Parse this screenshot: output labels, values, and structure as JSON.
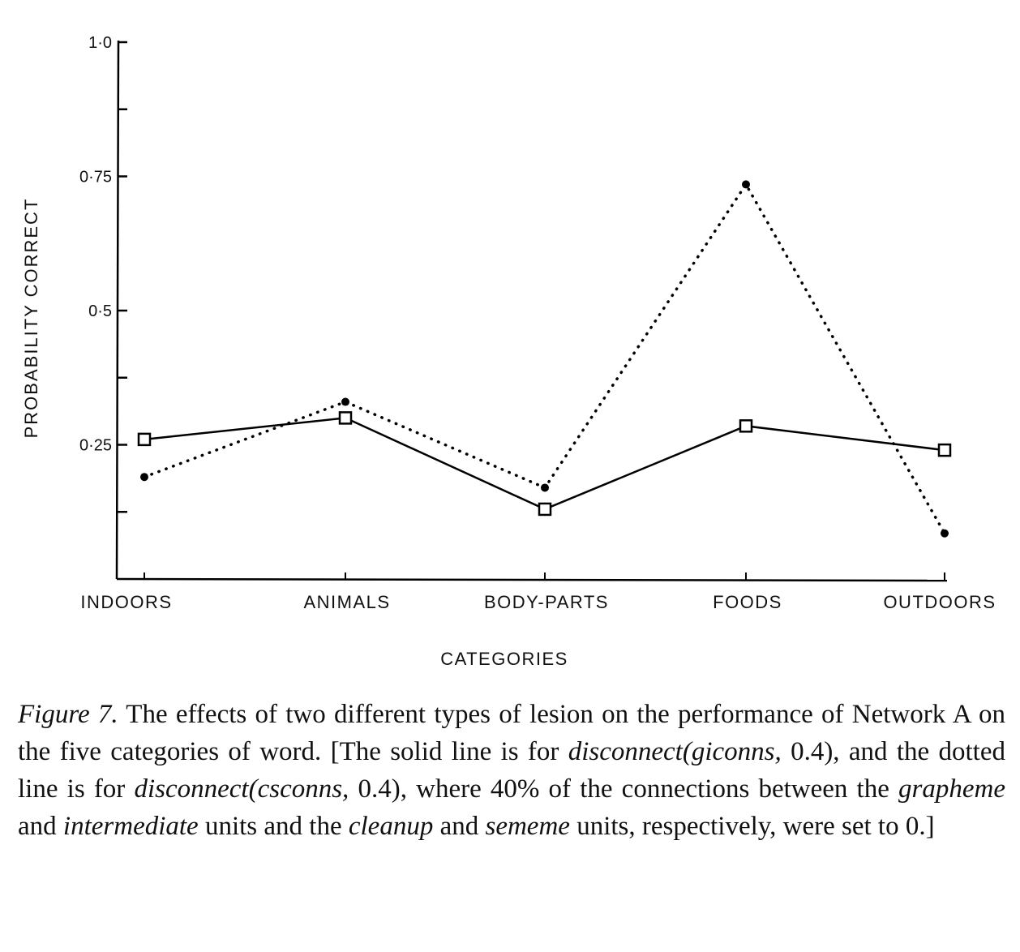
{
  "chart_data": {
    "type": "line",
    "xlabel": "CATEGORIES",
    "ylabel": "PROBABILITY CORRECT",
    "categories": [
      "INDOORS",
      "ANIMALS",
      "BODY-PARTS",
      "FOODS",
      "OUTDOORS"
    ],
    "ylim": [
      0,
      1.0
    ],
    "yticks": [
      {
        "value": 1.0,
        "label": "1·0"
      },
      {
        "value": 0.75,
        "label": "0·75"
      },
      {
        "value": 0.5,
        "label": "0·5"
      },
      {
        "value": 0.25,
        "label": "0·25"
      }
    ],
    "minor_yticks": [
      0.875,
      0.375,
      0.125
    ],
    "grid": false,
    "series": [
      {
        "style": "solid",
        "marker": "open-square",
        "values": [
          0.26,
          0.3,
          0.13,
          0.285,
          0.24
        ]
      },
      {
        "style": "dotted",
        "marker": "filled-dot",
        "values": [
          0.19,
          0.33,
          0.17,
          0.735,
          0.085
        ]
      }
    ]
  },
  "caption": {
    "fig_label": "Figure 7.",
    "t1": " The effects of two different types of lesion on the performance of Network A on the five categories of word. [The solid line is for ",
    "i1": "disconnect(giconns,",
    "t2": " 0.4), and the dotted line is for ",
    "i2": "disconnect(csconns,",
    "t3": " 0.4), where 40% of the connections between the ",
    "i3": "grapheme",
    "t4": " and ",
    "i4": "intermediate",
    "t5": " units and the ",
    "i5": "cleanup",
    "t6": " and ",
    "i6": "sememe",
    "t7": " units, respectively, were set to 0.]"
  }
}
